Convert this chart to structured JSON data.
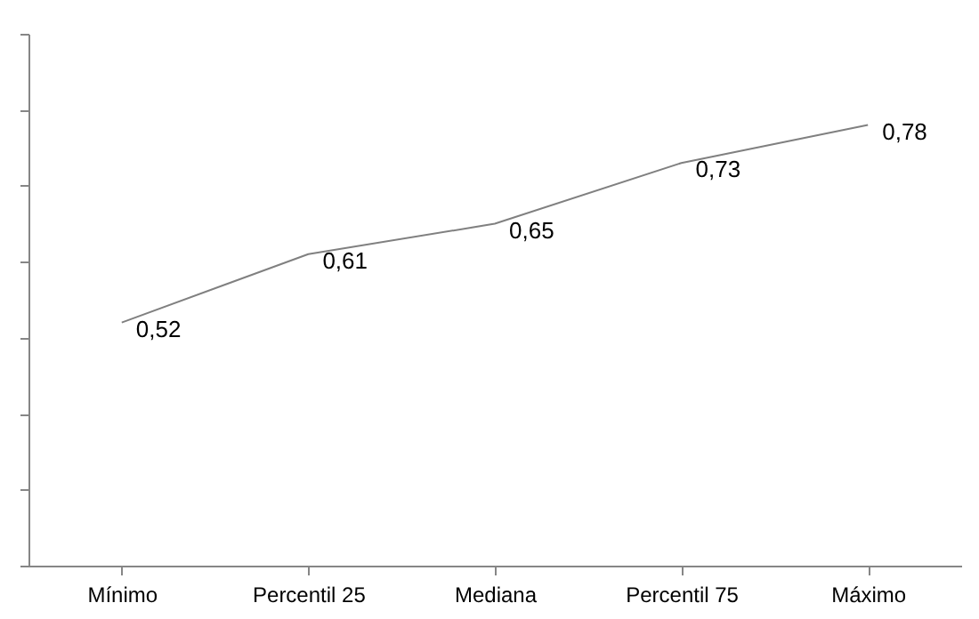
{
  "chart_data": {
    "type": "line",
    "categories": [
      "Mínimo",
      "Percentil 25",
      "Mediana",
      "Percentil 75",
      "Máximo"
    ],
    "series": [
      {
        "color": "#808080",
        "values": [
          0.52,
          0.61,
          0.65,
          0.73,
          0.78
        ],
        "value_labels": [
          "0,52",
          "0,61",
          "0,65",
          "0,73",
          "0,78"
        ]
      }
    ],
    "ylim": [
      0.2,
      0.9
    ],
    "yticks": [
      {
        "value": 0.2,
        "label": null
      },
      {
        "value": 0.3,
        "label": null
      },
      {
        "value": 0.4,
        "label": null
      },
      {
        "value": 0.5,
        "label": null
      },
      {
        "value": 0.6,
        "label": null
      },
      {
        "value": 0.7,
        "label": null
      },
      {
        "value": 0.8,
        "label": null
      },
      {
        "value": 0.9,
        "label": null
      }
    ],
    "tick_labels": "x",
    "grid": false,
    "legend": false,
    "marker": "none",
    "line_style": "solid"
  }
}
